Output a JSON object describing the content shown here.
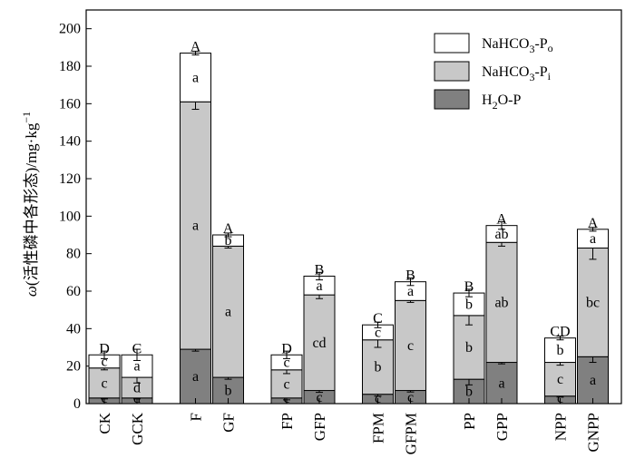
{
  "chart_data": {
    "type": "bar",
    "stacked": true,
    "ylabel": "ω(活性磷中各形态)/mg·kg⁻¹",
    "ylabel_prefix": "ω",
    "ylabel_paren": "(活性磷中各形态)/mg·kg",
    "ylabel_exp": "−1",
    "ylim": [
      0,
      210
    ],
    "yticks": [
      0,
      20,
      40,
      60,
      80,
      100,
      120,
      140,
      160,
      180,
      200
    ],
    "grid": false,
    "legend_position": "top-right",
    "categories": [
      "CK",
      "GCK",
      "F",
      "GF",
      "FP",
      "GFP",
      "FPM",
      "GFPM",
      "PP",
      "GPP",
      "NPP",
      "GNPP"
    ],
    "group_gaps_after": [
      1,
      3,
      5,
      7,
      9
    ],
    "series": [
      {
        "key": "h2o",
        "name": "H₂O-P",
        "legend_main": "H",
        "legend_sub": "2",
        "legend_rest": "O-P",
        "color": "#808080",
        "values": [
          3,
          3,
          29,
          14,
          3,
          7,
          5,
          7,
          13,
          22,
          4,
          25
        ],
        "errors": [
          0.5,
          0.5,
          1,
          1,
          1,
          1,
          1,
          0.8,
          3,
          0.8,
          0.5,
          3
        ],
        "letters": [
          "c",
          "d",
          "a",
          "b",
          "c",
          "c",
          "c",
          "c",
          "b",
          "a",
          "c",
          "a"
        ]
      },
      {
        "key": "pi",
        "name": "NaHCO₃-Pᵢ",
        "legend_main": "NaHCO",
        "legend_sub": "3",
        "legend_rest": "-P",
        "legend_rest_sub": "i",
        "color": "#c8c8c8",
        "values": [
          16,
          11,
          132,
          70,
          15,
          51,
          29,
          48,
          34,
          64,
          18,
          58
        ],
        "errors": [
          1,
          3,
          4,
          1,
          2,
          2,
          4,
          1,
          5,
          2,
          1.5,
          6
        ],
        "letters": [
          "c",
          "d",
          "a",
          "a",
          "c",
          "cd",
          "b",
          "c",
          "b",
          "ab",
          "c",
          "bc"
        ]
      },
      {
        "key": "po",
        "name": "NaHCO₃-Pₒ",
        "legend_main": "NaHCO",
        "legend_sub": "3",
        "legend_rest": "-P",
        "legend_rest_sub": "o",
        "color": "#ffffff",
        "values": [
          7,
          12,
          26,
          6,
          8,
          10,
          8,
          10,
          12,
          9,
          13,
          10
        ],
        "errors": [
          2,
          3,
          1,
          1,
          2,
          2,
          1.5,
          2,
          2,
          2,
          1,
          1
        ],
        "letters": [
          "c",
          "a",
          "a",
          "b",
          "c",
          "a",
          "c",
          "a",
          "b",
          "ab",
          "b",
          "a"
        ]
      }
    ],
    "total_letters": [
      "D",
      "C",
      "A",
      "A",
      "D",
      "B",
      "C",
      "B",
      "B",
      "A",
      "CD",
      "A"
    ]
  }
}
